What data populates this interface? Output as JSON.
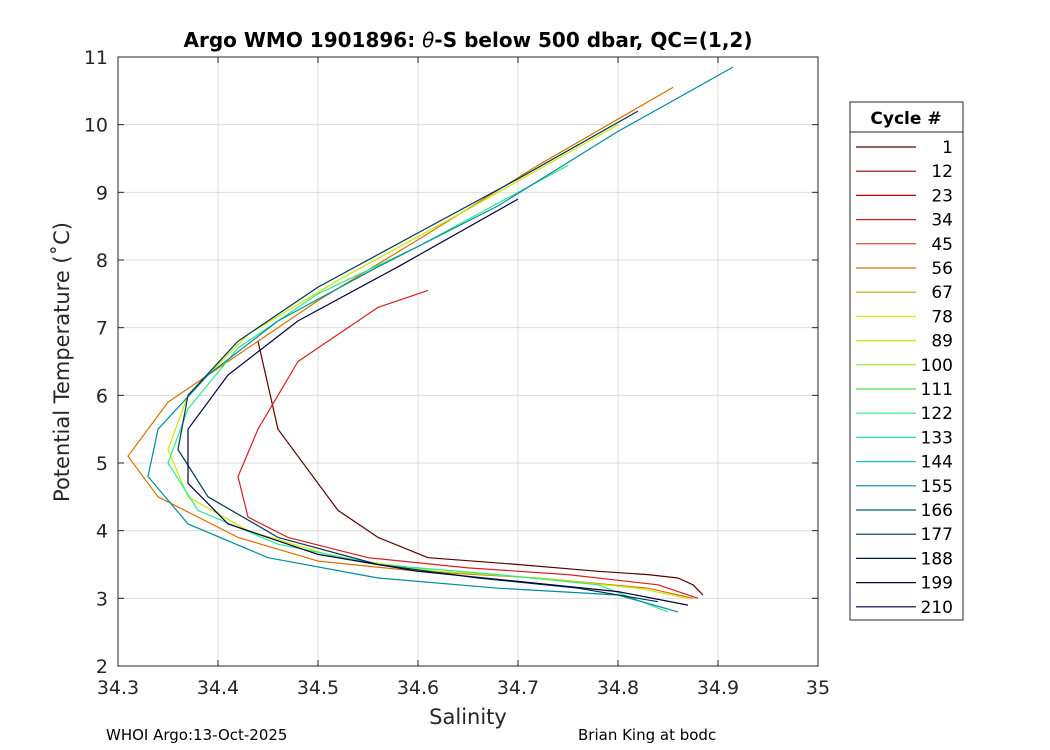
{
  "chart_data": {
    "type": "line",
    "title_prefix": "Argo WMO 1901896: ",
    "title_theta": "θ",
    "title_suffix": "-S below 500 dbar,  QC=(1,2)",
    "xlabel": "Salinity",
    "ylabel": "Potential Temperature (˚C)",
    "xlim": [
      34.3,
      35
    ],
    "ylim": [
      2,
      11
    ],
    "xticks": [
      "34.3",
      "34.4",
      "34.5",
      "34.6",
      "34.7",
      "34.8",
      "34.9",
      "35"
    ],
    "yticks": [
      "2",
      "3",
      "4",
      "5",
      "6",
      "7",
      "8",
      "9",
      "10",
      "11"
    ],
    "grid": true,
    "legend": {
      "title": "Cycle #",
      "placement": "right-outside",
      "entries": [
        "1",
        "12",
        "23",
        "34",
        "45",
        "56",
        "67",
        "78",
        "89",
        "100",
        "111",
        "122",
        "133",
        "144",
        "155",
        "166",
        "177",
        "188",
        "199",
        "210"
      ],
      "colors": [
        "#5a0000",
        "#8b0000",
        "#c00000",
        "#d42020",
        "#e03c10",
        "#d87000",
        "#c8a000",
        "#e8e800",
        "#c8e800",
        "#90e830",
        "#50e050",
        "#30e890",
        "#20e0b0",
        "#10c8c0",
        "#008c9c",
        "#006070",
        "#003850",
        "#001c40",
        "#000a30",
        "#000040"
      ]
    },
    "series": [
      {
        "x": [
          34.44,
          34.46,
          34.52,
          34.56,
          34.61,
          34.7,
          34.78,
          34.83,
          34.86,
          34.875,
          34.885
        ],
        "y": [
          6.8,
          5.5,
          4.3,
          3.9,
          3.6,
          3.5,
          3.4,
          3.35,
          3.3,
          3.2,
          3.05
        ]
      },
      {
        "x": [
          34.61,
          34.56,
          34.48,
          34.44,
          34.42,
          34.43,
          34.47,
          34.55,
          34.65,
          34.75,
          34.84,
          34.88
        ],
        "y": [
          7.55,
          7.3,
          6.5,
          5.5,
          4.8,
          4.2,
          3.9,
          3.6,
          3.45,
          3.35,
          3.2,
          3.0
        ]
      },
      {
        "x": [
          34.855,
          34.72,
          34.6,
          34.5,
          34.42,
          34.35,
          34.31,
          34.34,
          34.42,
          34.5,
          34.6,
          34.72,
          34.83,
          34.875
        ],
        "y": [
          10.55,
          9.4,
          8.3,
          7.4,
          6.6,
          5.9,
          5.1,
          4.5,
          3.9,
          3.55,
          3.4,
          3.3,
          3.15,
          3.0
        ]
      },
      {
        "x": [
          34.8,
          34.65,
          34.52,
          34.43,
          34.37,
          34.35,
          34.37,
          34.43,
          34.52,
          34.62,
          34.72,
          34.82,
          34.87
        ],
        "y": [
          10.0,
          8.75,
          7.7,
          6.9,
          6.0,
          5.2,
          4.5,
          4.0,
          3.6,
          3.4,
          3.3,
          3.15,
          3.0
        ]
      },
      {
        "x": [
          34.75,
          34.6,
          34.5,
          34.42,
          34.37,
          34.35,
          34.38,
          34.46,
          34.56,
          34.68,
          34.78,
          34.85
        ],
        "y": [
          9.4,
          8.2,
          7.5,
          6.7,
          5.8,
          5.0,
          4.3,
          3.8,
          3.5,
          3.35,
          3.2,
          2.8
        ]
      },
      {
        "x": [
          34.915,
          34.8,
          34.68,
          34.56,
          34.46,
          34.39,
          34.34,
          34.33,
          34.37,
          34.45,
          34.56,
          34.68,
          34.8,
          34.86
        ],
        "y": [
          10.85,
          9.9,
          8.8,
          7.9,
          7.1,
          6.3,
          5.5,
          4.8,
          4.1,
          3.6,
          3.3,
          3.15,
          3.05,
          2.8
        ]
      },
      {
        "x": [
          34.82,
          34.7,
          34.6,
          34.5,
          34.42,
          34.37,
          34.36,
          34.39,
          34.46,
          34.56,
          34.66,
          34.76,
          34.84
        ],
        "y": [
          10.2,
          9.2,
          8.4,
          7.6,
          6.8,
          6.0,
          5.2,
          4.5,
          3.9,
          3.5,
          3.3,
          3.15,
          2.95
        ]
      },
      {
        "x": [
          34.7,
          34.58,
          34.48,
          34.41,
          34.37,
          34.37,
          34.41,
          34.5,
          34.6,
          34.7,
          34.8,
          34.87
        ],
        "y": [
          8.9,
          7.9,
          7.1,
          6.3,
          5.5,
          4.7,
          4.1,
          3.65,
          3.4,
          3.25,
          3.1,
          2.9
        ]
      }
    ]
  },
  "footer": {
    "left": "WHOI Argo:13-Oct-2025",
    "right": "Brian King at bodc"
  }
}
